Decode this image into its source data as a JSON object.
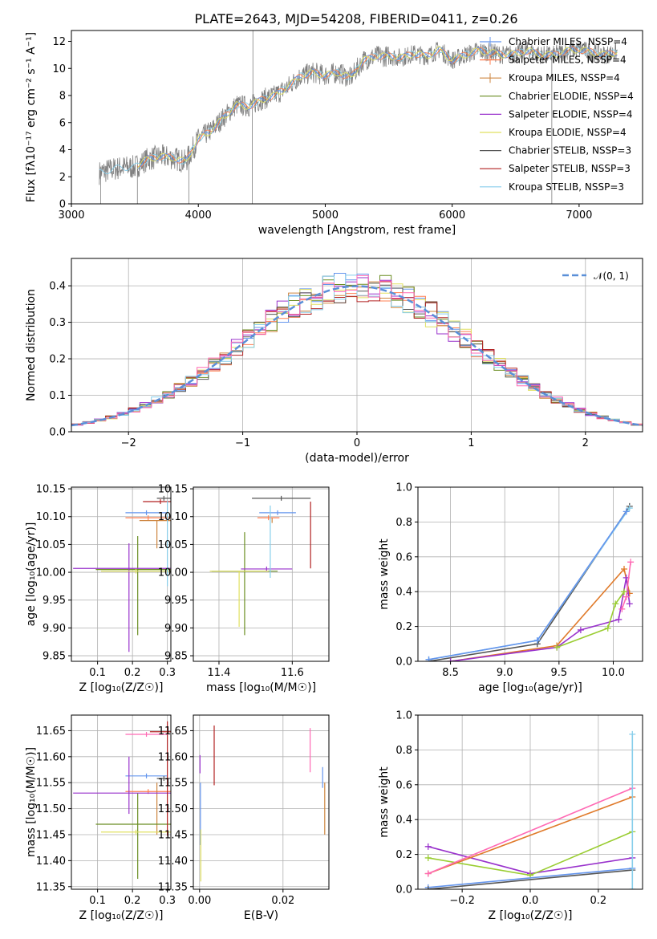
{
  "figure": {
    "title": "PLATE=2643, MJD=54208, FIBERID=0411, z=0.26"
  },
  "colors": {
    "chabrier_miles": "#6495ed",
    "salpeter_miles": "#ff7f50",
    "kroupa_miles": "#cd853f",
    "chabrier_elodie": "#6b8e23",
    "salpeter_elodie": "#9932cc",
    "kroupa_elodie": "#e0e060",
    "chabrier_stelib": "#555555",
    "salpeter_stelib": "#b22222",
    "kroupa_stelib": "#87ceeb",
    "model_overlay_orange": "#e07a2a",
    "model_overlay_green": "#9acd32",
    "model_overlay_pink": "#ff69b4",
    "model_overlay_teal": "#3cb3a0",
    "normal_curve": "#5a8fd8"
  },
  "chart_data": [
    {
      "id": "spectrum",
      "type": "line",
      "xlabel": "wavelength [Angstrom, rest frame]",
      "ylabel": "Flux [f$_\\lambda 10^{-17}$ erg cm$^{-2}$ s$^{-1}$ A$^{-1}$]",
      "xlim": [
        3000,
        7500
      ],
      "ylim": [
        0,
        12.8
      ],
      "xticks": [
        3000,
        4000,
        5000,
        6000,
        7000
      ],
      "yticks": [
        0,
        2,
        4,
        6,
        8,
        10,
        12
      ],
      "grid": false,
      "legend_position": "upper right",
      "legend": [
        {
          "label": "Chabrier MILES, N$_{SSP}$=4",
          "color_key": "chabrier_miles"
        },
        {
          "label": "Salpeter MILES, N$_{SSP}$=4",
          "color_key": "salpeter_miles"
        },
        {
          "label": "Kroupa MILES, N$_{SSP}$=4",
          "color_key": "kroupa_miles"
        },
        {
          "label": "Chabrier ELODIE, N$_{SSP}$=4",
          "color_key": "chabrier_elodie"
        },
        {
          "label": "Salpeter ELODIE, N$_{SSP}$=4",
          "color_key": "salpeter_elodie"
        },
        {
          "label": "Kroupa ELODIE, N$_{SSP}$=4",
          "color_key": "kroupa_elodie"
        },
        {
          "label": "Chabrier STELIB, N$_{SSP}$=3",
          "color_key": "chabrier_stelib"
        },
        {
          "label": "Salpeter STELIB, N$_{SSP}$=3",
          "color_key": "salpeter_stelib"
        },
        {
          "label": "Kroupa STELIB, N$_{SSP}$=3",
          "color_key": "kroupa_stelib"
        }
      ],
      "continuum": {
        "x": [
          3220,
          3300,
          3400,
          3500,
          3600,
          3700,
          3800,
          3900,
          4000,
          4100,
          4200,
          4300,
          4400,
          4500,
          4600,
          4700,
          4800,
          4900,
          5000,
          5100,
          5200,
          5300,
          5400,
          5500,
          5600,
          5700,
          5800,
          5900,
          6000,
          6100,
          6200,
          6300,
          6400,
          6500,
          6600,
          6700,
          6800,
          6900,
          7000,
          7100,
          7200,
          7300
        ],
        "y": [
          2.3,
          2.5,
          2.7,
          2.7,
          3.3,
          3.5,
          3.4,
          3.1,
          4.8,
          5.4,
          6.4,
          7.3,
          7.2,
          7.7,
          8.0,
          8.6,
          9.4,
          9.7,
          9.5,
          9.7,
          9.3,
          10.6,
          10.9,
          10.9,
          10.8,
          11.1,
          10.9,
          11.4,
          10.6,
          11.0,
          11.3,
          11.2,
          11.0,
          11.1,
          11.3,
          11.0,
          11.0,
          11.3,
          11.4,
          11.2,
          11.0,
          11.2
        ]
      },
      "spikes": [
        {
          "x": 3230,
          "y_low": 0.0
        },
        {
          "x": 3520,
          "y_low": 0.0
        },
        {
          "x": 3925,
          "y_low": 0.0
        },
        {
          "x": 4425,
          "y_low": 0.0
        },
        {
          "x": 4430,
          "y_high": 12.8
        },
        {
          "x": 6785,
          "y_low": 0.0
        }
      ]
    },
    {
      "id": "residuals",
      "type": "bar",
      "xlabel": "(data-model)/error",
      "ylabel": "Normed distribution",
      "xlim": [
        -2.5,
        2.5
      ],
      "ylim": [
        0,
        0.475
      ],
      "xticks": [
        -2,
        -1,
        0,
        1,
        2
      ],
      "yticks": [
        0.0,
        0.1,
        0.2,
        0.3,
        0.4
      ],
      "grid": true,
      "legend_position": "upper right",
      "normal_label": "$\\mathcal{N}(0,1)$",
      "normal_mean": 0,
      "normal_sigma": 1
    },
    {
      "id": "age_vs_Z",
      "type": "scatter",
      "xlabel": "Z [log$_{10}$($Z/Z_\\odot$)]",
      "ylabel": "age  [log$_{10}$($age/yr$)]",
      "xlim": [
        0.025,
        0.31
      ],
      "ylim": [
        9.84,
        10.153
      ],
      "xticks": [
        0.1,
        0.2,
        0.3
      ],
      "yticks": [
        9.85,
        9.9,
        9.95,
        10.0,
        10.05,
        10.1,
        10.15
      ],
      "grid": true,
      "points": [
        {
          "color_key": "chabrier_miles",
          "x": 0.24,
          "y": 10.107,
          "xerr": 0.06,
          "yerr_low": 0.0,
          "yerr_high": 0.0
        },
        {
          "color_key": "salpeter_miles",
          "x": 0.245,
          "y": 10.098,
          "xerr": 0.065,
          "yerr_low": 0.0,
          "yerr_high": 0.0
        },
        {
          "color_key": "kroupa_miles",
          "x": 0.27,
          "y": 10.093,
          "xerr": 0.05,
          "yerr_low": 0.05,
          "yerr_high": 0.0
        },
        {
          "color_key": "chabrier_elodie",
          "x": 0.215,
          "y": 10.005,
          "xerr": 0.12,
          "yerr_low": 0.118,
          "yerr_high": 0.06
        },
        {
          "color_key": "salpeter_elodie",
          "x": 0.19,
          "y": 10.007,
          "xerr": 0.16,
          "yerr_low": 0.15,
          "yerr_high": 0.045
        },
        {
          "color_key": "kroupa_elodie",
          "x": 0.21,
          "y": 10.002,
          "xerr": 0.1,
          "yerr_low": 0.0,
          "yerr_high": 0.0
        },
        {
          "color_key": "chabrier_stelib",
          "x": 0.29,
          "y": 10.133,
          "xerr": 0.02,
          "yerr_low": 0.0,
          "yerr_high": 0.0
        },
        {
          "color_key": "salpeter_stelib",
          "x": 0.28,
          "y": 10.127,
          "xerr": 0.05,
          "yerr_low": 0.0,
          "yerr_high": 0.0
        },
        {
          "color_key": "kroupa_stelib",
          "x": 0.3,
          "y": 10.128,
          "xerr": 0.0,
          "yerr_low": 0.153,
          "yerr_high": 0.0
        }
      ]
    },
    {
      "id": "age_vs_mass",
      "type": "scatter",
      "xlabel": "mass [log$_{10}$($M/M_\\odot$)]",
      "ylabel": "",
      "xlim": [
        11.33,
        11.7
      ],
      "ylim": [
        9.84,
        10.153
      ],
      "xticks": [
        11.4,
        11.6
      ],
      "yticks": [
        9.85,
        9.9,
        9.95,
        10.0,
        10.05,
        10.1,
        10.15
      ],
      "grid": true,
      "points": [
        {
          "color_key": "chabrier_miles",
          "x": 11.56,
          "y": 10.107,
          "xerr": 0.05,
          "yerr_low": 0.0,
          "yerr_high": 0.0
        },
        {
          "color_key": "salpeter_miles",
          "x": 11.535,
          "y": 10.098,
          "xerr": 0.03,
          "yerr_low": 0.0,
          "yerr_high": 0.0
        },
        {
          "color_key": "kroupa_miles",
          "x": 11.545,
          "y": 10.093,
          "xerr": 0.0,
          "yerr_low": 0.0,
          "yerr_high": 0.0
        },
        {
          "color_key": "chabrier_elodie",
          "x": 11.47,
          "y": 10.002,
          "xerr": 0.09,
          "yerr_low": 0.115,
          "yerr_high": 0.07
        },
        {
          "color_key": "salpeter_elodie",
          "x": 11.53,
          "y": 10.006,
          "xerr": 0.07,
          "yerr_low": 0.0,
          "yerr_high": 0.0
        },
        {
          "color_key": "kroupa_elodie",
          "x": 11.455,
          "y": 10.002,
          "xerr": 0.08,
          "yerr_low": 0.1,
          "yerr_high": 0.0
        },
        {
          "color_key": "chabrier_stelib",
          "x": 11.57,
          "y": 10.133,
          "xerr": 0.08,
          "yerr_low": 0.0,
          "yerr_high": 0.0
        },
        {
          "color_key": "salpeter_stelib",
          "x": 11.65,
          "y": 10.127,
          "xerr": 0.0,
          "yerr_low": 0.12,
          "yerr_high": 0.0
        },
        {
          "color_key": "kroupa_stelib",
          "x": 11.54,
          "y": 10.12,
          "xerr": 0.0,
          "yerr_low": 0.13,
          "yerr_high": 0.0
        }
      ]
    },
    {
      "id": "mass_weight_vs_age",
      "type": "line",
      "xlabel": "age  [log$_{10}$($age/yr$)]",
      "ylabel": "mass weight",
      "xlim": [
        8.2,
        10.27
      ],
      "ylim": [
        0,
        1.0
      ],
      "xticks": [
        8.5,
        9.0,
        9.5,
        10.0
      ],
      "yticks": [
        0.0,
        0.2,
        0.4,
        0.6,
        0.8,
        1.0
      ],
      "grid": true,
      "series": [
        {
          "color_key": "chabrier_stelib",
          "x": [
            8.3,
            9.3,
            10.15
          ],
          "y": [
            0.0,
            0.1,
            0.89
          ]
        },
        {
          "color_key": "kroupa_stelib",
          "x": [
            8.3,
            9.3,
            10.15
          ],
          "y": [
            0.01,
            0.12,
            0.88
          ]
        },
        {
          "color_key": "chabrier_miles",
          "x": [
            8.3,
            9.3,
            10.12
          ],
          "y": [
            0.01,
            0.12,
            0.86
          ]
        },
        {
          "color_key": "model_overlay_orange",
          "x": [
            8.5,
            9.48,
            10.1,
            10.15
          ],
          "y": [
            0.0,
            0.09,
            0.53,
            0.39
          ]
        },
        {
          "color_key": "salpeter_elodie",
          "x": [
            8.5,
            9.48,
            9.7,
            10.05,
            10.12,
            10.15
          ],
          "y": [
            0.0,
            0.08,
            0.18,
            0.24,
            0.48,
            0.33
          ]
        },
        {
          "color_key": "model_overlay_pink",
          "x": [
            10.08,
            10.12,
            10.16
          ],
          "y": [
            0.3,
            0.37,
            0.57
          ]
        },
        {
          "color_key": "model_overlay_green",
          "x": [
            9.48,
            9.95,
            10.02,
            10.1
          ],
          "y": [
            0.08,
            0.19,
            0.33,
            0.4
          ]
        }
      ]
    },
    {
      "id": "mass_vs_Z",
      "type": "scatter",
      "xlabel": "Z [log$_{10}$($Z/Z_\\odot$)]",
      "ylabel": "mass [log$_{10}$($M/M_\\odot$)]",
      "xlim": [
        0.025,
        0.31
      ],
      "ylim": [
        11.345,
        11.68
      ],
      "xticks": [
        0.1,
        0.2,
        0.3
      ],
      "yticks": [
        11.35,
        11.4,
        11.45,
        11.5,
        11.55,
        11.6,
        11.65
      ],
      "grid": true,
      "points": [
        {
          "color_key": "chabrier_miles",
          "x": 0.24,
          "y": 11.563,
          "xerr": 0.06,
          "yerr_low": 0.0,
          "yerr_high": 0.0
        },
        {
          "color_key": "salpeter_miles",
          "x": 0.245,
          "y": 11.533,
          "xerr": 0.065,
          "yerr_low": 0.0,
          "yerr_high": 0.0
        },
        {
          "color_key": "kroupa_miles",
          "x": 0.27,
          "y": 11.55,
          "xerr": 0.0,
          "yerr_low": 0.1,
          "yerr_high": 0.0
        },
        {
          "color_key": "chabrier_elodie",
          "x": 0.215,
          "y": 11.47,
          "xerr": 0.12,
          "yerr_low": 0.105,
          "yerr_high": 0.06
        },
        {
          "color_key": "salpeter_elodie",
          "x": 0.19,
          "y": 11.53,
          "xerr": 0.16,
          "yerr_low": 0.04,
          "yerr_high": 0.07
        },
        {
          "color_key": "kroupa_elodie",
          "x": 0.21,
          "y": 11.455,
          "xerr": 0.1,
          "yerr_low": 0.0,
          "yerr_high": 0.0
        },
        {
          "color_key": "chabrier_stelib",
          "x": 0.29,
          "y": 11.558,
          "xerr": 0.02,
          "yerr_low": 0.0,
          "yerr_high": 0.0
        },
        {
          "color_key": "salpeter_stelib",
          "x": 0.3,
          "y": 11.648,
          "xerr": 0.05,
          "yerr_low": 0.2,
          "yerr_high": 0.02
        },
        {
          "color_key": "model_overlay_pink",
          "x": 0.24,
          "y": 11.643,
          "xerr": 0.06,
          "yerr_low": 0.0,
          "yerr_high": 0.0
        }
      ]
    },
    {
      "id": "mass_vs_ebv",
      "type": "scatter",
      "xlabel": "E(B-V)",
      "ylabel": "",
      "xlim": [
        -0.0015,
        0.031
      ],
      "ylim": [
        11.345,
        11.68
      ],
      "xticks": [
        0.0,
        0.02
      ],
      "yticks": [
        11.35,
        11.4,
        11.45,
        11.5,
        11.55,
        11.6,
        11.65
      ],
      "grid": true,
      "points": [
        {
          "color_key": "salpeter_elodie",
          "x": 0.0001,
          "y": 11.588,
          "xerr": 0.0,
          "yerr_low": 0.02,
          "yerr_high": 0.015
        },
        {
          "color_key": "chabrier_miles",
          "x": 0.0002,
          "y": 11.49,
          "xerr": 0.0,
          "yerr_low": 0.06,
          "yerr_high": 0.06
        },
        {
          "color_key": "kroupa_elodie",
          "x": 0.0003,
          "y": 11.4,
          "xerr": 0.0,
          "yerr_low": 0.04,
          "yerr_high": 0.06
        },
        {
          "color_key": "salpeter_stelib",
          "x": 0.0035,
          "y": 11.6,
          "xerr": 0.0,
          "yerr_low": 0.055,
          "yerr_high": 0.06
        },
        {
          "color_key": "model_overlay_pink",
          "x": 0.0265,
          "y": 11.61,
          "xerr": 0.0,
          "yerr_low": 0.04,
          "yerr_high": 0.045
        },
        {
          "color_key": "kroupa_miles",
          "x": 0.03,
          "y": 11.5,
          "xerr": 0.0,
          "yerr_low": 0.05,
          "yerr_high": 0.05
        },
        {
          "color_key": "chabrier_miles",
          "x": 0.0295,
          "y": 11.56,
          "xerr": 0.0,
          "yerr_low": 0.02,
          "yerr_high": 0.02
        }
      ]
    },
    {
      "id": "mass_weight_vs_Z",
      "type": "line",
      "xlabel": "Z [log$_{10}$($Z/Z_\\odot$)]",
      "ylabel": "mass weight",
      "xlim": [
        -0.33,
        0.33
      ],
      "ylim": [
        0,
        1.0
      ],
      "xticks": [
        -0.2,
        0.0,
        0.2
      ],
      "yticks": [
        0.0,
        0.2,
        0.4,
        0.6,
        0.8,
        1.0
      ],
      "grid": true,
      "series": [
        {
          "color_key": "salpeter_elodie",
          "x": [
            -0.3,
            0.0,
            0.3
          ],
          "y": [
            0.245,
            0.09,
            0.18
          ]
        },
        {
          "color_key": "model_overlay_green",
          "x": [
            -0.3,
            0.0,
            0.3
          ],
          "y": [
            0.18,
            0.08,
            0.33
          ]
        },
        {
          "color_key": "model_overlay_orange",
          "x": [
            -0.3,
            0.3
          ],
          "y": [
            0.09,
            0.53
          ]
        },
        {
          "color_key": "model_overlay_pink",
          "x": [
            -0.3,
            0.3
          ],
          "y": [
            0.09,
            0.58
          ]
        },
        {
          "color_key": "chabrier_miles",
          "x": [
            -0.3,
            0.3
          ],
          "y": [
            0.01,
            0.12
          ]
        },
        {
          "color_key": "chabrier_stelib",
          "x": [
            -0.3,
            0.3
          ],
          "y": [
            0.0,
            0.11
          ]
        },
        {
          "color_key": "kroupa_stelib",
          "x": [
            0.3,
            0.3
          ],
          "y": [
            0.0,
            0.89
          ]
        }
      ]
    }
  ]
}
